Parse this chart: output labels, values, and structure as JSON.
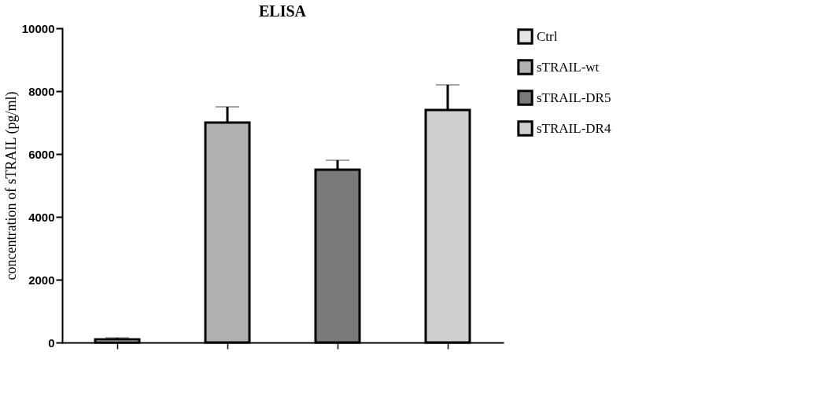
{
  "chart_data": {
    "type": "bar",
    "title": "ELISA",
    "ylabel": "concentration of sTRAIL (pg/ml)",
    "categories": [
      null,
      null,
      null,
      null
    ],
    "series": [
      {
        "name": "Ctrl",
        "color": "#e6e6e6",
        "values": [
          100,
          null,
          null,
          null
        ],
        "errors": [
          50,
          null,
          null,
          null
        ]
      },
      {
        "name": "sTRAIL-wt",
        "color": "#b0b0b0",
        "values": [
          null,
          7000,
          null,
          null
        ],
        "errors": [
          null,
          500,
          null,
          null
        ]
      },
      {
        "name": "sTRAIL-DR5",
        "color": "#7a7a7a",
        "values": [
          null,
          null,
          5500,
          null
        ],
        "errors": [
          null,
          null,
          300,
          null
        ]
      },
      {
        "name": "sTRAIL-DR4",
        "color": "#cfcfcf",
        "values": [
          null,
          null,
          null,
          7400
        ],
        "errors": [
          null,
          null,
          null,
          800
        ]
      }
    ],
    "ylim": [
      0,
      10000
    ],
    "yticks": [
      0,
      2000,
      4000,
      6000,
      8000,
      10000
    ],
    "grid": false,
    "legend": "right",
    "tick_labels": "y"
  }
}
